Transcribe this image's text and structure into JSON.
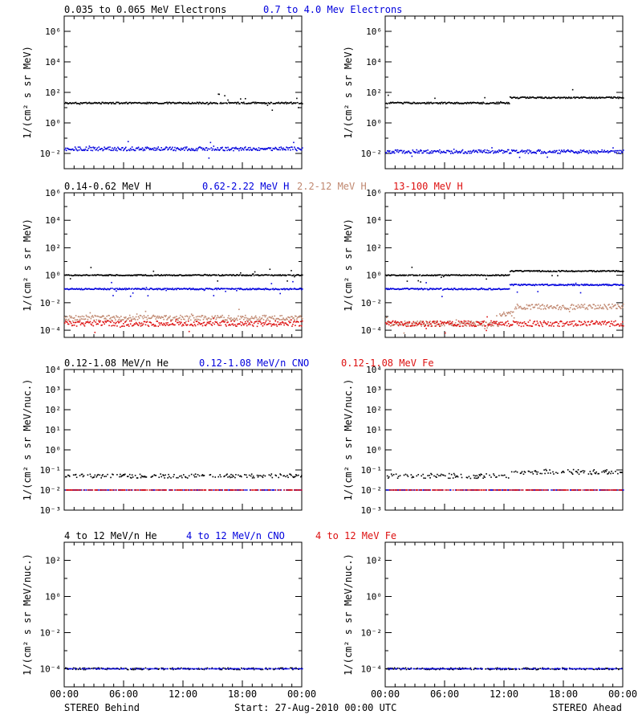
{
  "figure": {
    "footer_left": "STEREO Behind",
    "footer_center": "Start: 27-Aug-2010 00:00 UTC",
    "footer_right": "STEREO Ahead",
    "x_tick_labels": [
      "00:00",
      "06:00",
      "12:00",
      "18:00",
      "00:00"
    ]
  },
  "colors": {
    "black": "#000000",
    "blue": "#0000dd",
    "tan": "#c08870",
    "red": "#dd1010"
  },
  "chart_data": [
    {
      "id": "electrons",
      "type": "scatter",
      "ylabel": "1/(cm² s sr MeV)",
      "ylog": true,
      "ylim": [
        0.001,
        10000000
      ],
      "yticks": [
        0.01,
        1,
        100,
        10000,
        1000000
      ],
      "ytick_labels": [
        "10⁻²",
        "10⁰",
        "10²",
        "10⁴",
        "10⁶"
      ],
      "xlim_hours": [
        0,
        24
      ],
      "legend": [
        {
          "label": "0.035 to 0.065 MeV Electrons",
          "color": "#000000"
        },
        {
          "label": "0.7 to 4.0 Mev Electrons",
          "color": "#0000dd"
        }
      ],
      "behind": [
        {
          "name": "0.035 to 0.065 MeV Electrons",
          "color": "#000000",
          "segments": [
            [
              0,
              24,
              20
            ]
          ],
          "scatter": 0.05
        },
        {
          "name": "0.7 to 4.0 Mev Electrons",
          "color": "#0000dd",
          "segments": [
            [
              0,
              24,
              0.02
            ]
          ],
          "scatter": 0.12
        }
      ],
      "ahead": [
        {
          "name": "0.035 to 0.065 MeV Electrons",
          "color": "#000000",
          "segments": [
            [
              0,
              12.5,
              20
            ],
            [
              12.5,
              24,
              45
            ]
          ],
          "scatter": 0.05
        },
        {
          "name": "0.7 to 4.0 Mev Electrons",
          "color": "#0000dd",
          "segments": [
            [
              0,
              24,
              0.013
            ]
          ],
          "scatter": 0.12
        }
      ]
    },
    {
      "id": "protons",
      "type": "scatter",
      "ylabel": "1/(cm² s sr MeV)",
      "ylog": true,
      "ylim": [
        3e-05,
        1000000
      ],
      "yticks": [
        0.0001,
        0.01,
        1,
        100,
        10000,
        1000000
      ],
      "ytick_labels": [
        "10⁻⁴",
        "10⁻²",
        "10⁰",
        "10²",
        "10⁴",
        "10⁶"
      ],
      "xlim_hours": [
        0,
        24
      ],
      "legend": [
        {
          "label": "0.14-0.62 MeV H",
          "color": "#000000"
        },
        {
          "label": "0.62-2.22 MeV H",
          "color": "#0000dd"
        },
        {
          "label": "2.2-12 MeV H",
          "color": "#c08870"
        },
        {
          "label": "13-100 MeV H",
          "color": "#dd1010"
        }
      ],
      "behind": [
        {
          "name": "0.14-0.62 MeV H",
          "color": "#000000",
          "segments": [
            [
              0,
              24,
              1.0
            ]
          ],
          "scatter": 0.04
        },
        {
          "name": "0.62-2.22 MeV H",
          "color": "#0000dd",
          "segments": [
            [
              0,
              24,
              0.1
            ]
          ],
          "scatter": 0.05
        },
        {
          "name": "2.2-12 MeV H",
          "color": "#c08870",
          "segments": [
            [
              0,
              24,
              0.0008
            ]
          ],
          "scatter": 0.18
        },
        {
          "name": "13-100 MeV H",
          "color": "#dd1010",
          "segments": [
            [
              0,
              24,
              0.0003
            ]
          ],
          "scatter": 0.2
        }
      ],
      "ahead": [
        {
          "name": "0.14-0.62 MeV H",
          "color": "#000000",
          "segments": [
            [
              0,
              12.5,
              1.0
            ],
            [
              12.5,
              24,
              2.0
            ]
          ],
          "scatter": 0.04
        },
        {
          "name": "0.62-2.22 MeV H",
          "color": "#0000dd",
          "segments": [
            [
              0,
              12.5,
              0.1
            ],
            [
              12.5,
              24,
              0.2
            ]
          ],
          "scatter": 0.05
        },
        {
          "name": "2.2-12 MeV H",
          "color": "#c08870",
          "segments": [
            [
              0,
              11.5,
              0.0003
            ],
            [
              11.5,
              13,
              0.0015
            ],
            [
              13,
              24,
              0.005
            ]
          ],
          "scatter": 0.2
        },
        {
          "name": "13-100 MeV H",
          "color": "#dd1010",
          "segments": [
            [
              0,
              24,
              0.0003
            ]
          ],
          "scatter": 0.2
        }
      ]
    },
    {
      "id": "heavy-low",
      "type": "scatter",
      "ylabel": "1/(cm² s sr MeV/nuc.)",
      "ylog": true,
      "ylim": [
        0.001,
        10000
      ],
      "yticks": [
        0.001,
        0.01,
        0.1,
        1,
        10,
        100,
        1000,
        10000
      ],
      "ytick_labels": [
        "10⁻³",
        "10⁻²",
        "10⁻¹",
        "10⁰",
        "10¹",
        "10²",
        "10³",
        "10⁴"
      ],
      "xlim_hours": [
        0,
        24
      ],
      "legend": [
        {
          "label": "0.12-1.08 MeV/n He",
          "color": "#000000"
        },
        {
          "label": "0.12-1.08 MeV/n CNO",
          "color": "#0000dd"
        },
        {
          "label": "0.12-1.08 MeV Fe",
          "color": "#dd1010"
        }
      ],
      "behind": [
        {
          "name": "0.12-1.08 MeV/n He",
          "color": "#000000",
          "segments": [
            [
              0,
              24,
              0.05
            ]
          ],
          "scatter": 0.1,
          "sparse": true
        },
        {
          "name": "0.12-1.08 MeV/n CNO",
          "color": "#0000dd",
          "segments": [
            [
              0,
              24,
              0.01
            ]
          ],
          "scatter": 0.0,
          "sparse": true
        },
        {
          "name": "0.12-1.08 MeV Fe",
          "color": "#dd1010",
          "segments": [
            [
              0,
              24,
              0.01
            ]
          ],
          "scatter": 0.0,
          "sparse": true
        }
      ],
      "ahead": [
        {
          "name": "0.12-1.08 MeV/n He",
          "color": "#000000",
          "segments": [
            [
              0,
              12.5,
              0.05
            ],
            [
              12.5,
              24,
              0.08
            ]
          ],
          "scatter": 0.12,
          "sparse": true
        },
        {
          "name": "0.12-1.08 MeV/n CNO",
          "color": "#0000dd",
          "segments": [
            [
              0,
              24,
              0.01
            ]
          ],
          "scatter": 0.0,
          "sparse": true
        },
        {
          "name": "0.12-1.08 MeV Fe",
          "color": "#dd1010",
          "segments": [
            [
              0,
              24,
              0.01
            ]
          ],
          "scatter": 0.0,
          "sparse": true
        }
      ]
    },
    {
      "id": "heavy-high",
      "type": "scatter",
      "ylabel": "1/(cm² s sr MeV/nuc.)",
      "ylog": true,
      "ylim": [
        1e-05,
        1000
      ],
      "yticks": [
        0.0001,
        0.01,
        1,
        100
      ],
      "ytick_labels": [
        "10⁻⁴",
        "10⁻²",
        "10⁰",
        "10²"
      ],
      "xlim_hours": [
        0,
        24
      ],
      "legend": [
        {
          "label": "4 to 12 MeV/n He",
          "color": "#000000"
        },
        {
          "label": "4 to 12 MeV/n CNO",
          "color": "#0000dd"
        },
        {
          "label": "4 to 12 MeV Fe",
          "color": "#dd1010"
        }
      ],
      "behind": [
        {
          "name": "4 to 12 MeV/n He",
          "color": "#000000",
          "segments": [
            [
              0,
              24,
              0.0001
            ]
          ],
          "scatter": 0.05,
          "sparse": true
        },
        {
          "name": "4 to 12 MeV/n CNO",
          "color": "#0000dd",
          "segments": [
            [
              0,
              24,
              0.0001
            ]
          ],
          "scatter": 0.0,
          "sparse": true
        }
      ],
      "ahead": [
        {
          "name": "4 to 12 MeV/n He",
          "color": "#000000",
          "segments": [
            [
              0,
              24,
              0.0001
            ]
          ],
          "scatter": 0.05,
          "sparse": true
        },
        {
          "name": "4 to 12 MeV/n CNO",
          "color": "#0000dd",
          "segments": [
            [
              0,
              24,
              0.0001
            ]
          ],
          "scatter": 0.0,
          "sparse": true
        }
      ]
    }
  ]
}
